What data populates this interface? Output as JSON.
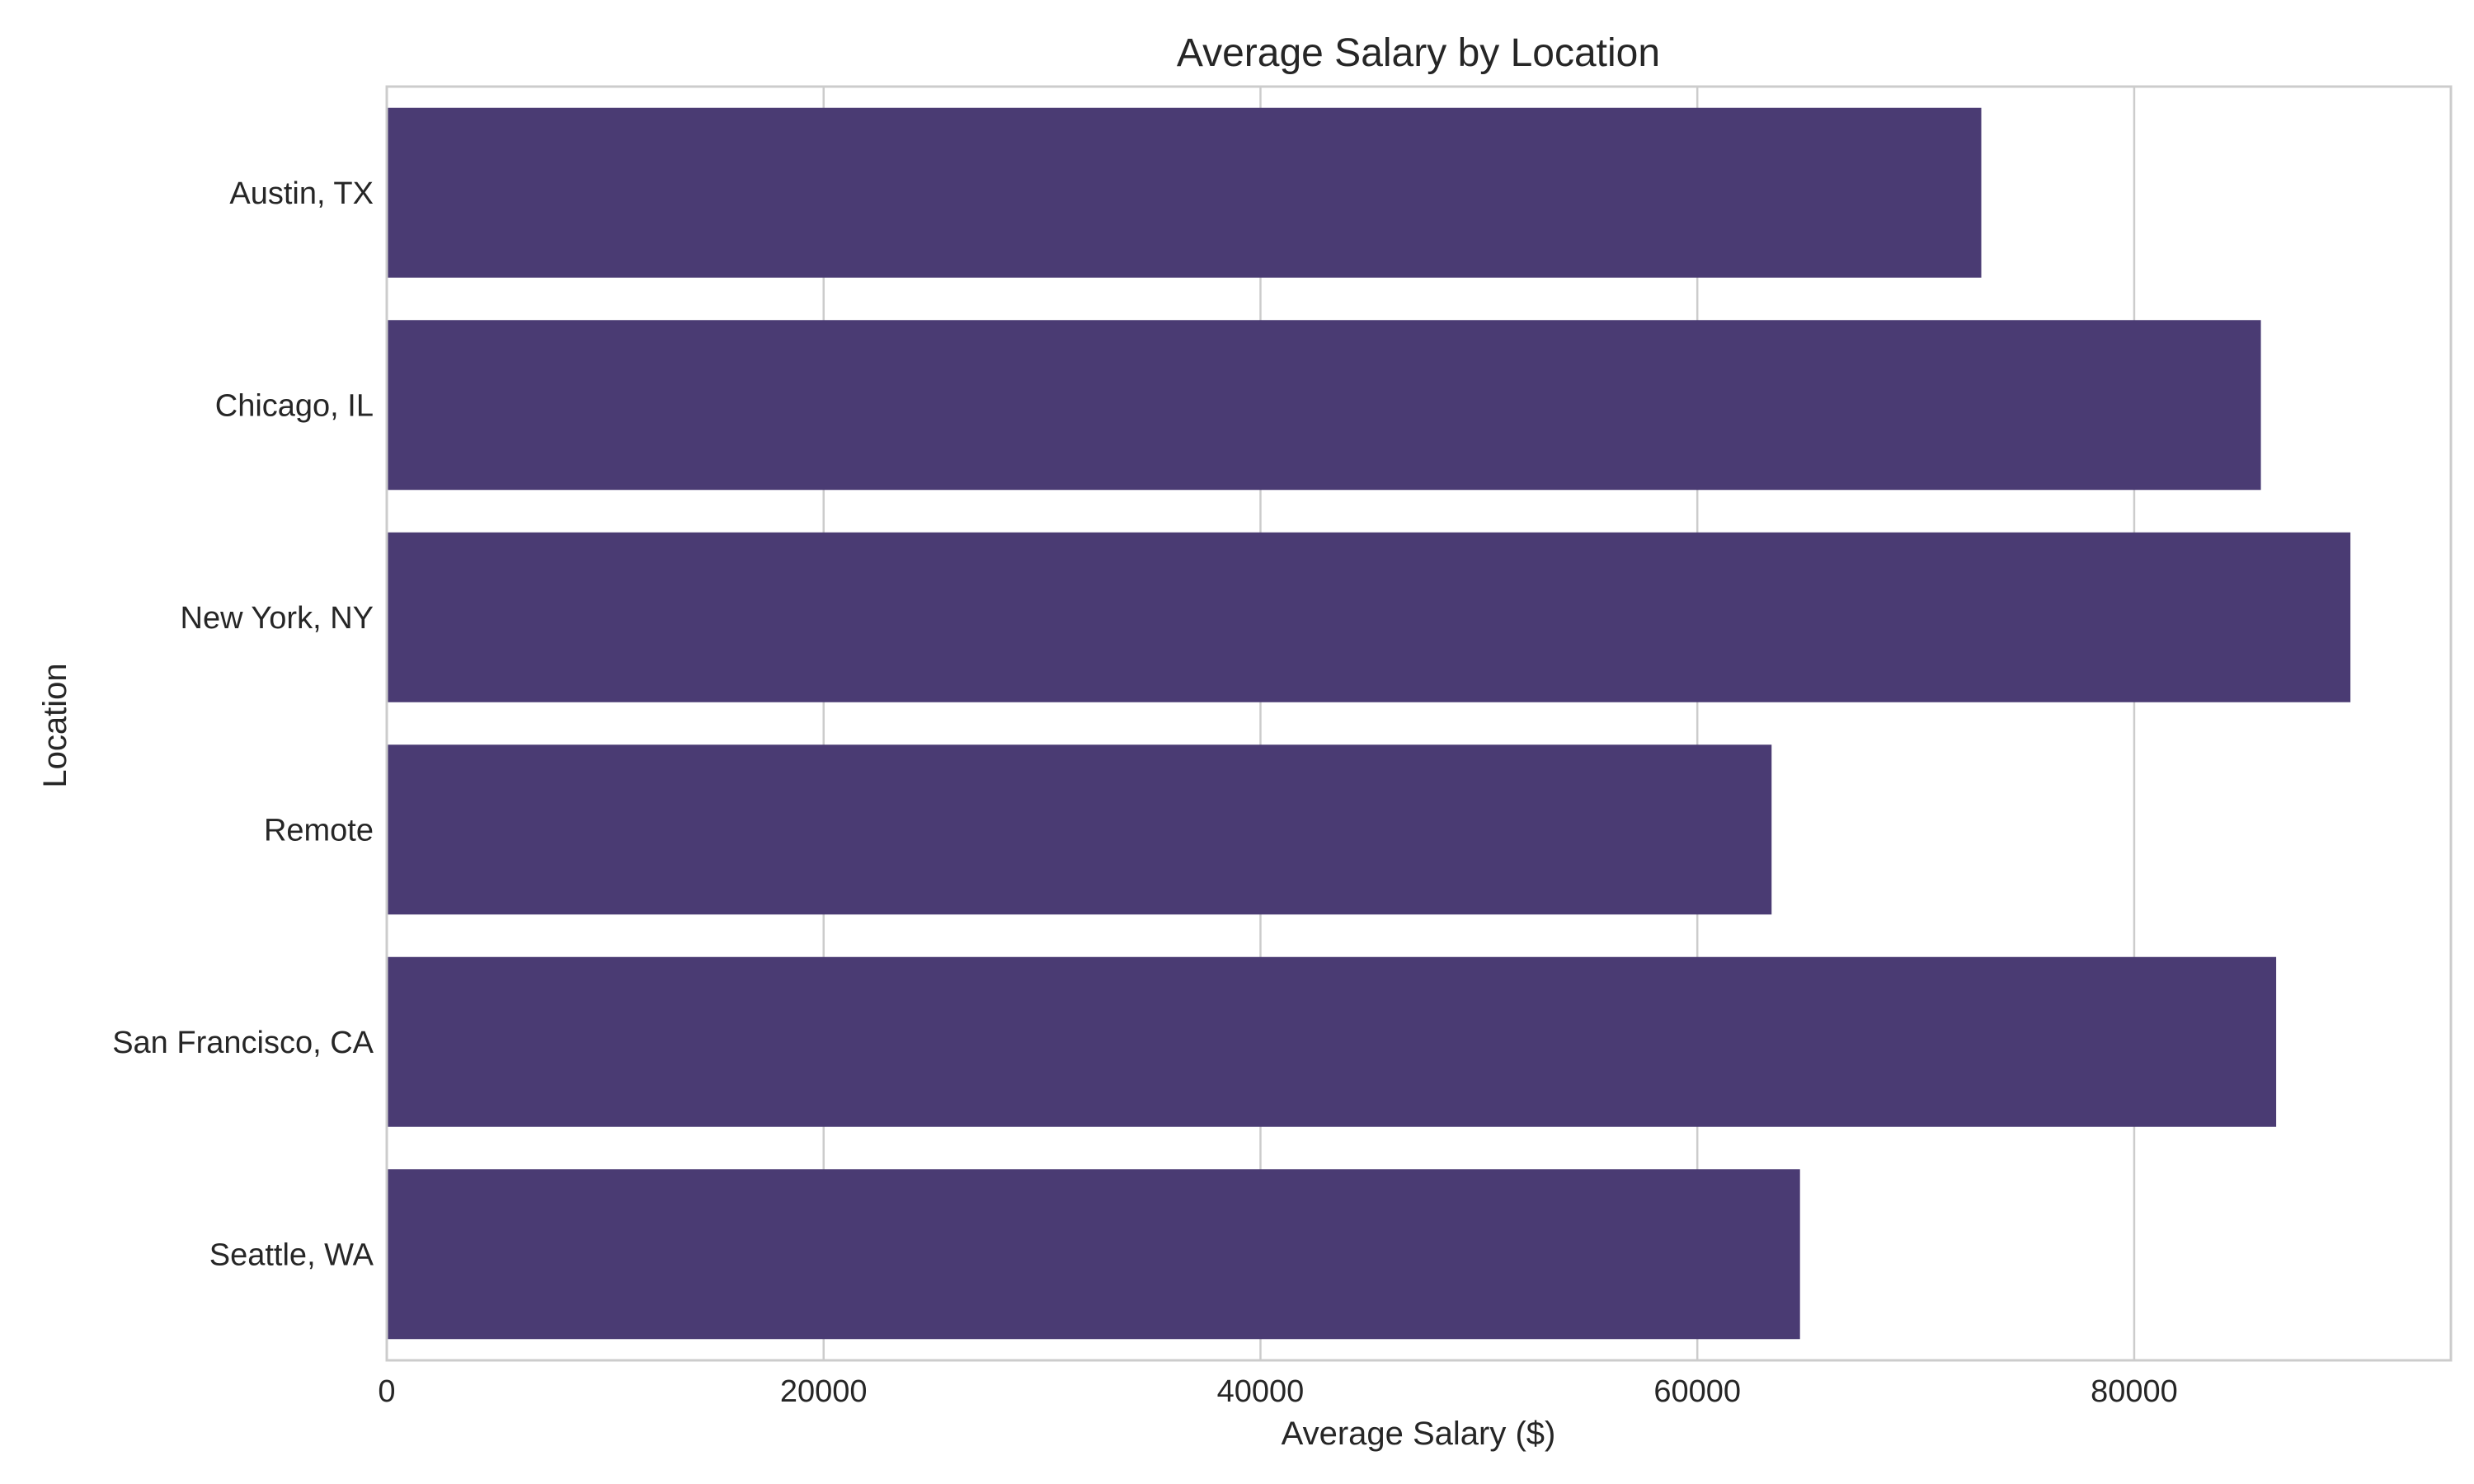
{
  "chart_data": {
    "type": "bar",
    "orientation": "horizontal",
    "title": "Average Salary by Location",
    "xlabel": "Average Salary ($)",
    "ylabel": "Location",
    "categories": [
      "Austin, TX",
      "Chicago, IL",
      "New York, NY",
      "Remote",
      "San Francisco, CA",
      "Seattle, WA"
    ],
    "values": [
      73000,
      85800,
      89900,
      63400,
      86500,
      64700
    ],
    "xlim": [
      0,
      94500
    ],
    "xticks": [
      0,
      20000,
      40000,
      60000,
      80000
    ],
    "grid": true,
    "bar_color": "#4a3b73",
    "grid_color": "#cccccc"
  }
}
